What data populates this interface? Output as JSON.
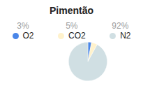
{
  "chart_data": {
    "type": "pie",
    "title": "Pimentão",
    "categories": [
      "O2",
      "CO2",
      "N2"
    ],
    "values": [
      3,
      5,
      92
    ],
    "value_labels": [
      "3%",
      "5%",
      "92%"
    ],
    "colors": [
      "#4a86e8",
      "#fff2cc",
      "#d0dfe3"
    ],
    "legend": "top"
  }
}
